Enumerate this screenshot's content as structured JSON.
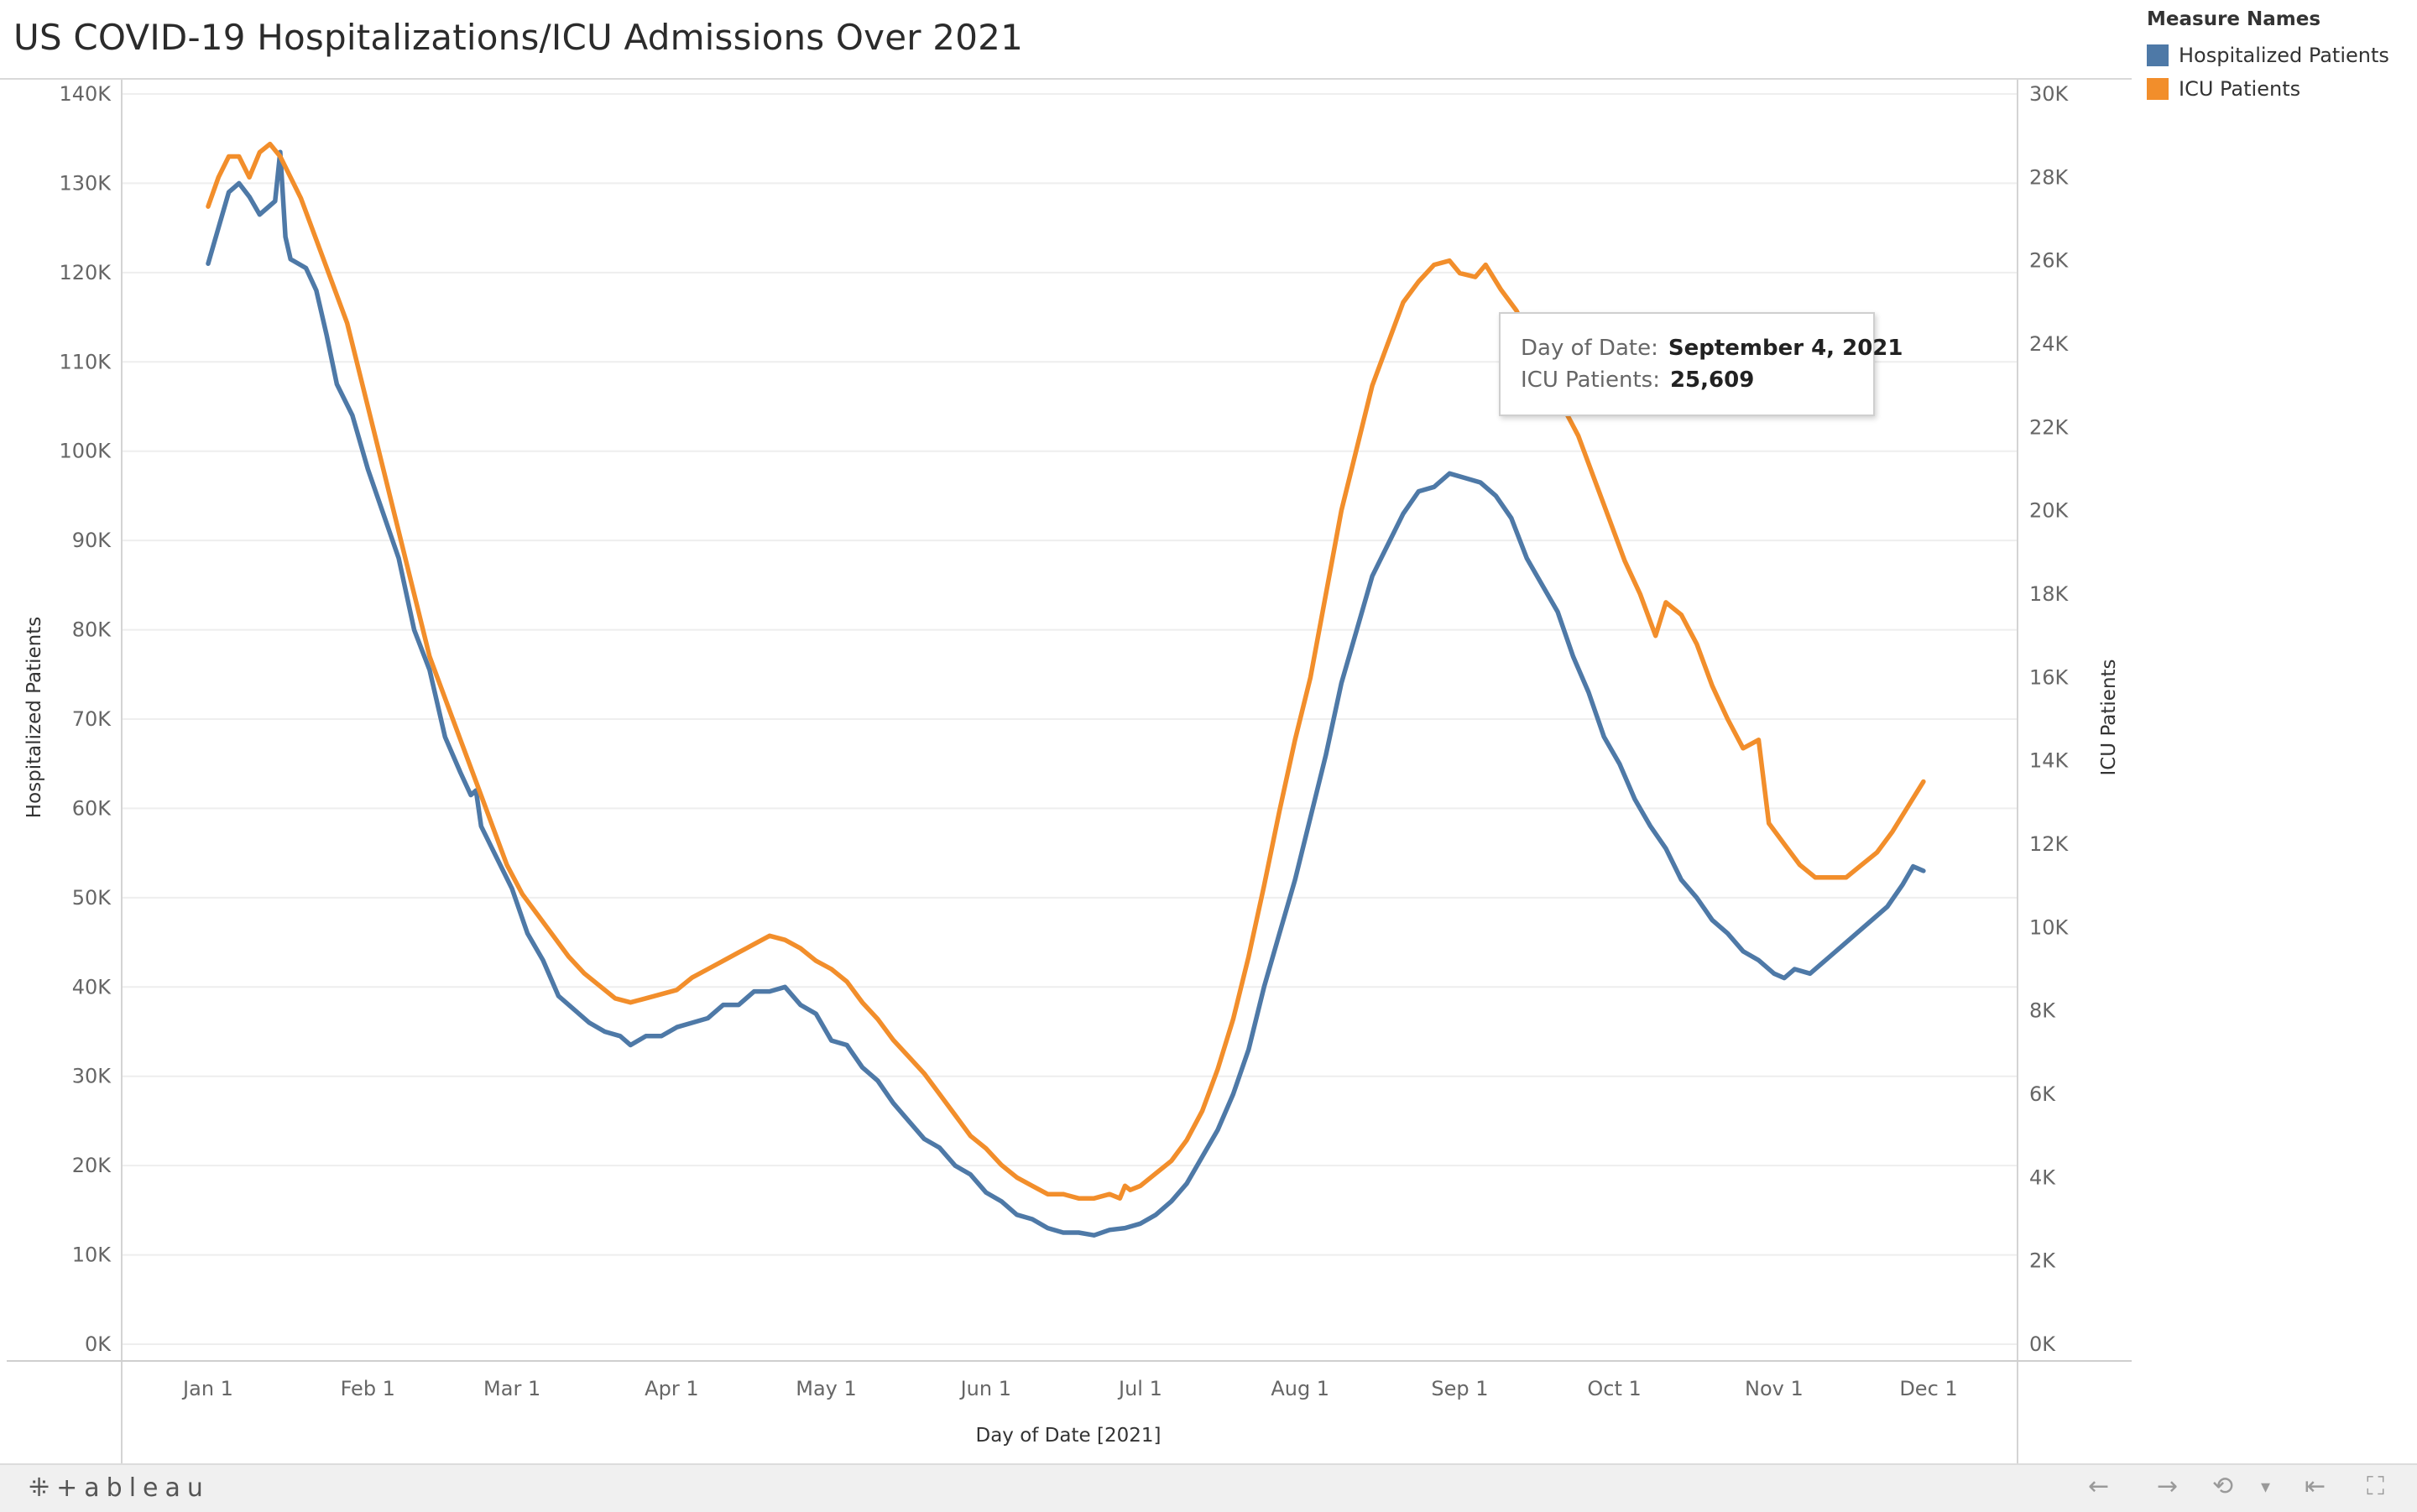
{
  "title": "US COVID-19 Hospitalizations/ICU Admissions Over 2021",
  "legend": {
    "title": "Measure Names",
    "items": [
      {
        "label": "Hospitalized Patients",
        "color": "#4e79a7"
      },
      {
        "label": "ICU Patients",
        "color": "#f28e2b"
      }
    ]
  },
  "tooltip": {
    "date_key": "Day of Date:",
    "date_value": "September 4, 2021",
    "icu_key": "ICU Patients:",
    "icu_value": "25,609"
  },
  "footer": {
    "logo": "+ableau",
    "icons": [
      "undo-icon",
      "redo-icon",
      "revert-icon",
      "dropdown-icon",
      "back-to-start-icon",
      "fullscreen-icon"
    ]
  },
  "chart_data": {
    "type": "line",
    "xlabel": "Day of Date [2021]",
    "ylabel_left": "Hospitalized Patients",
    "ylabel_right": "ICU Patients",
    "x_ticks": [
      "Jan 1",
      "Feb 1",
      "Mar 1",
      "Apr 1",
      "May 1",
      "Jun 1",
      "Jul 1",
      "Aug 1",
      "Sep 1",
      "Oct 1",
      "Nov 1",
      "Dec 1"
    ],
    "x_tick_dates": [
      "2021-01-01",
      "2021-02-01",
      "2021-03-01",
      "2021-04-01",
      "2021-05-01",
      "2021-06-01",
      "2021-07-01",
      "2021-08-01",
      "2021-09-01",
      "2021-10-01",
      "2021-11-01",
      "2021-12-01"
    ],
    "xlim": [
      "2021-01-01",
      "2021-12-01"
    ],
    "y_left_ticks": [
      "0K",
      "10K",
      "20K",
      "30K",
      "40K",
      "50K",
      "60K",
      "70K",
      "80K",
      "90K",
      "100K",
      "110K",
      "120K",
      "130K",
      "140K"
    ],
    "y_left_lim": [
      0,
      140000
    ],
    "y_right_ticks": [
      "0K",
      "2K",
      "4K",
      "6K",
      "8K",
      "10K",
      "12K",
      "14K",
      "16K",
      "18K",
      "20K",
      "22K",
      "24K",
      "26K",
      "28K",
      "30K"
    ],
    "y_right_lim": [
      0,
      30000
    ],
    "grid": "horizontal",
    "legend_position": "top-right",
    "series": [
      {
        "name": "Hospitalized Patients",
        "axis": "left",
        "color": "#4e79a7",
        "points": [
          [
            "2021-01-01",
            121000
          ],
          [
            "2021-01-03",
            125000
          ],
          [
            "2021-01-05",
            129000
          ],
          [
            "2021-01-07",
            130000
          ],
          [
            "2021-01-09",
            128500
          ],
          [
            "2021-01-11",
            126500
          ],
          [
            "2021-01-13",
            127500
          ],
          [
            "2021-01-14",
            128000
          ],
          [
            "2021-01-15",
            133500
          ],
          [
            "2021-01-16",
            124000
          ],
          [
            "2021-01-17",
            121500
          ],
          [
            "2021-01-20",
            120500
          ],
          [
            "2021-01-22",
            118000
          ],
          [
            "2021-01-24",
            113000
          ],
          [
            "2021-01-26",
            107500
          ],
          [
            "2021-01-29",
            104000
          ],
          [
            "2021-02-01",
            98000
          ],
          [
            "2021-02-04",
            93000
          ],
          [
            "2021-02-07",
            88000
          ],
          [
            "2021-02-10",
            80000
          ],
          [
            "2021-02-13",
            75500
          ],
          [
            "2021-02-16",
            68000
          ],
          [
            "2021-02-19",
            64000
          ],
          [
            "2021-02-21",
            61500
          ],
          [
            "2021-02-22",
            62000
          ],
          [
            "2021-02-23",
            58000
          ],
          [
            "2021-02-26",
            54500
          ],
          [
            "2021-03-01",
            51000
          ],
          [
            "2021-03-04",
            46000
          ],
          [
            "2021-03-07",
            43000
          ],
          [
            "2021-03-10",
            39000
          ],
          [
            "2021-03-13",
            37500
          ],
          [
            "2021-03-16",
            36000
          ],
          [
            "2021-03-19",
            35000
          ],
          [
            "2021-03-22",
            34500
          ],
          [
            "2021-03-24",
            33500
          ],
          [
            "2021-03-27",
            34500
          ],
          [
            "2021-03-30",
            34500
          ],
          [
            "2021-04-02",
            35500
          ],
          [
            "2021-04-05",
            36000
          ],
          [
            "2021-04-08",
            36500
          ],
          [
            "2021-04-11",
            38000
          ],
          [
            "2021-04-14",
            38000
          ],
          [
            "2021-04-17",
            39500
          ],
          [
            "2021-04-20",
            39500
          ],
          [
            "2021-04-23",
            40000
          ],
          [
            "2021-04-26",
            38000
          ],
          [
            "2021-04-29",
            37000
          ],
          [
            "2021-05-02",
            34000
          ],
          [
            "2021-05-05",
            33500
          ],
          [
            "2021-05-08",
            31000
          ],
          [
            "2021-05-11",
            29500
          ],
          [
            "2021-05-14",
            27000
          ],
          [
            "2021-05-17",
            25000
          ],
          [
            "2021-05-20",
            23000
          ],
          [
            "2021-05-23",
            22000
          ],
          [
            "2021-05-26",
            20000
          ],
          [
            "2021-05-29",
            19000
          ],
          [
            "2021-06-01",
            17000
          ],
          [
            "2021-06-04",
            16000
          ],
          [
            "2021-06-07",
            14500
          ],
          [
            "2021-06-10",
            14000
          ],
          [
            "2021-06-13",
            13000
          ],
          [
            "2021-06-16",
            12500
          ],
          [
            "2021-06-19",
            12500
          ],
          [
            "2021-06-22",
            12200
          ],
          [
            "2021-06-25",
            12800
          ],
          [
            "2021-06-28",
            13000
          ],
          [
            "2021-07-01",
            13500
          ],
          [
            "2021-07-04",
            14500
          ],
          [
            "2021-07-07",
            16000
          ],
          [
            "2021-07-10",
            18000
          ],
          [
            "2021-07-13",
            21000
          ],
          [
            "2021-07-16",
            24000
          ],
          [
            "2021-07-19",
            28000
          ],
          [
            "2021-07-22",
            33000
          ],
          [
            "2021-07-25",
            40000
          ],
          [
            "2021-07-28",
            46000
          ],
          [
            "2021-07-31",
            52000
          ],
          [
            "2021-08-03",
            59000
          ],
          [
            "2021-08-06",
            66000
          ],
          [
            "2021-08-09",
            74000
          ],
          [
            "2021-08-12",
            80000
          ],
          [
            "2021-08-15",
            86000
          ],
          [
            "2021-08-18",
            89500
          ],
          [
            "2021-08-21",
            93000
          ],
          [
            "2021-08-24",
            95500
          ],
          [
            "2021-08-27",
            96000
          ],
          [
            "2021-08-30",
            97500
          ],
          [
            "2021-09-02",
            97000
          ],
          [
            "2021-09-05",
            96500
          ],
          [
            "2021-09-08",
            95000
          ],
          [
            "2021-09-11",
            92500
          ],
          [
            "2021-09-14",
            88000
          ],
          [
            "2021-09-17",
            85000
          ],
          [
            "2021-09-20",
            82000
          ],
          [
            "2021-09-23",
            77000
          ],
          [
            "2021-09-26",
            73000
          ],
          [
            "2021-09-29",
            68000
          ],
          [
            "2021-10-02",
            65000
          ],
          [
            "2021-10-05",
            61000
          ],
          [
            "2021-10-08",
            58000
          ],
          [
            "2021-10-11",
            55500
          ],
          [
            "2021-10-14",
            52000
          ],
          [
            "2021-10-17",
            50000
          ],
          [
            "2021-10-20",
            47500
          ],
          [
            "2021-10-23",
            46000
          ],
          [
            "2021-10-26",
            44000
          ],
          [
            "2021-10-29",
            43000
          ],
          [
            "2021-11-01",
            41500
          ],
          [
            "2021-11-03",
            41000
          ],
          [
            "2021-11-05",
            42000
          ],
          [
            "2021-11-08",
            41500
          ],
          [
            "2021-11-11",
            43000
          ],
          [
            "2021-11-14",
            44500
          ],
          [
            "2021-11-17",
            46000
          ],
          [
            "2021-11-20",
            47500
          ],
          [
            "2021-11-23",
            49000
          ],
          [
            "2021-11-26",
            51500
          ],
          [
            "2021-11-28",
            53500
          ],
          [
            "2021-11-30",
            53000
          ]
        ]
      },
      {
        "name": "ICU Patients",
        "axis": "right",
        "color": "#f28e2b",
        "points": [
          [
            "2021-01-01",
            27300
          ],
          [
            "2021-01-03",
            28000
          ],
          [
            "2021-01-05",
            28500
          ],
          [
            "2021-01-07",
            28500
          ],
          [
            "2021-01-09",
            28000
          ],
          [
            "2021-01-11",
            28600
          ],
          [
            "2021-01-13",
            28800
          ],
          [
            "2021-01-15",
            28500
          ],
          [
            "2021-01-17",
            28000
          ],
          [
            "2021-01-19",
            27500
          ],
          [
            "2021-01-22",
            26500
          ],
          [
            "2021-01-25",
            25500
          ],
          [
            "2021-01-28",
            24500
          ],
          [
            "2021-02-01",
            22500
          ],
          [
            "2021-02-04",
            21000
          ],
          [
            "2021-02-07",
            19500
          ],
          [
            "2021-02-10",
            18000
          ],
          [
            "2021-02-13",
            16500
          ],
          [
            "2021-02-16",
            15500
          ],
          [
            "2021-02-19",
            14500
          ],
          [
            "2021-02-22",
            13500
          ],
          [
            "2021-02-25",
            12500
          ],
          [
            "2021-02-28",
            11500
          ],
          [
            "2021-03-03",
            10800
          ],
          [
            "2021-03-06",
            10300
          ],
          [
            "2021-03-09",
            9800
          ],
          [
            "2021-03-12",
            9300
          ],
          [
            "2021-03-15",
            8900
          ],
          [
            "2021-03-18",
            8600
          ],
          [
            "2021-03-21",
            8300
          ],
          [
            "2021-03-24",
            8200
          ],
          [
            "2021-03-27",
            8300
          ],
          [
            "2021-03-30",
            8400
          ],
          [
            "2021-04-02",
            8500
          ],
          [
            "2021-04-05",
            8800
          ],
          [
            "2021-04-08",
            9000
          ],
          [
            "2021-04-11",
            9200
          ],
          [
            "2021-04-14",
            9400
          ],
          [
            "2021-04-17",
            9600
          ],
          [
            "2021-04-20",
            9800
          ],
          [
            "2021-04-23",
            9700
          ],
          [
            "2021-04-26",
            9500
          ],
          [
            "2021-04-29",
            9200
          ],
          [
            "2021-05-02",
            9000
          ],
          [
            "2021-05-05",
            8700
          ],
          [
            "2021-05-08",
            8200
          ],
          [
            "2021-05-11",
            7800
          ],
          [
            "2021-05-14",
            7300
          ],
          [
            "2021-05-17",
            6900
          ],
          [
            "2021-05-20",
            6500
          ],
          [
            "2021-05-23",
            6000
          ],
          [
            "2021-05-26",
            5500
          ],
          [
            "2021-05-29",
            5000
          ],
          [
            "2021-06-01",
            4700
          ],
          [
            "2021-06-04",
            4300
          ],
          [
            "2021-06-07",
            4000
          ],
          [
            "2021-06-10",
            3800
          ],
          [
            "2021-06-13",
            3600
          ],
          [
            "2021-06-16",
            3600
          ],
          [
            "2021-06-19",
            3500
          ],
          [
            "2021-06-22",
            3500
          ],
          [
            "2021-06-25",
            3600
          ],
          [
            "2021-06-27",
            3500
          ],
          [
            "2021-06-28",
            3800
          ],
          [
            "2021-06-29",
            3700
          ],
          [
            "2021-07-01",
            3800
          ],
          [
            "2021-07-04",
            4100
          ],
          [
            "2021-07-07",
            4400
          ],
          [
            "2021-07-10",
            4900
          ],
          [
            "2021-07-13",
            5600
          ],
          [
            "2021-07-16",
            6600
          ],
          [
            "2021-07-19",
            7800
          ],
          [
            "2021-07-22",
            9300
          ],
          [
            "2021-07-25",
            11000
          ],
          [
            "2021-07-28",
            12800
          ],
          [
            "2021-07-31",
            14500
          ],
          [
            "2021-08-03",
            16000
          ],
          [
            "2021-08-06",
            18000
          ],
          [
            "2021-08-09",
            20000
          ],
          [
            "2021-08-12",
            21500
          ],
          [
            "2021-08-15",
            23000
          ],
          [
            "2021-08-18",
            24000
          ],
          [
            "2021-08-21",
            25000
          ],
          [
            "2021-08-24",
            25500
          ],
          [
            "2021-08-27",
            25900
          ],
          [
            "2021-08-30",
            26000
          ],
          [
            "2021-09-01",
            25700
          ],
          [
            "2021-09-04",
            25609
          ],
          [
            "2021-09-06",
            25900
          ],
          [
            "2021-09-09",
            25300
          ],
          [
            "2021-09-12",
            24800
          ],
          [
            "2021-09-15",
            24000
          ],
          [
            "2021-09-18",
            23200
          ],
          [
            "2021-09-21",
            22500
          ],
          [
            "2021-09-24",
            21800
          ],
          [
            "2021-09-27",
            20800
          ],
          [
            "2021-09-30",
            19800
          ],
          [
            "2021-10-03",
            18800
          ],
          [
            "2021-10-06",
            18000
          ],
          [
            "2021-10-09",
            17000
          ],
          [
            "2021-10-11",
            17800
          ],
          [
            "2021-10-14",
            17500
          ],
          [
            "2021-10-17",
            16800
          ],
          [
            "2021-10-20",
            15800
          ],
          [
            "2021-10-23",
            15000
          ],
          [
            "2021-10-26",
            14300
          ],
          [
            "2021-10-29",
            14500
          ],
          [
            "2021-10-31",
            12500
          ],
          [
            "2021-11-03",
            12000
          ],
          [
            "2021-11-06",
            11500
          ],
          [
            "2021-11-09",
            11200
          ],
          [
            "2021-11-12",
            11200
          ],
          [
            "2021-11-15",
            11200
          ],
          [
            "2021-11-18",
            11500
          ],
          [
            "2021-11-21",
            11800
          ],
          [
            "2021-11-24",
            12300
          ],
          [
            "2021-11-27",
            12900
          ],
          [
            "2021-11-30",
            13500
          ]
        ]
      }
    ]
  }
}
